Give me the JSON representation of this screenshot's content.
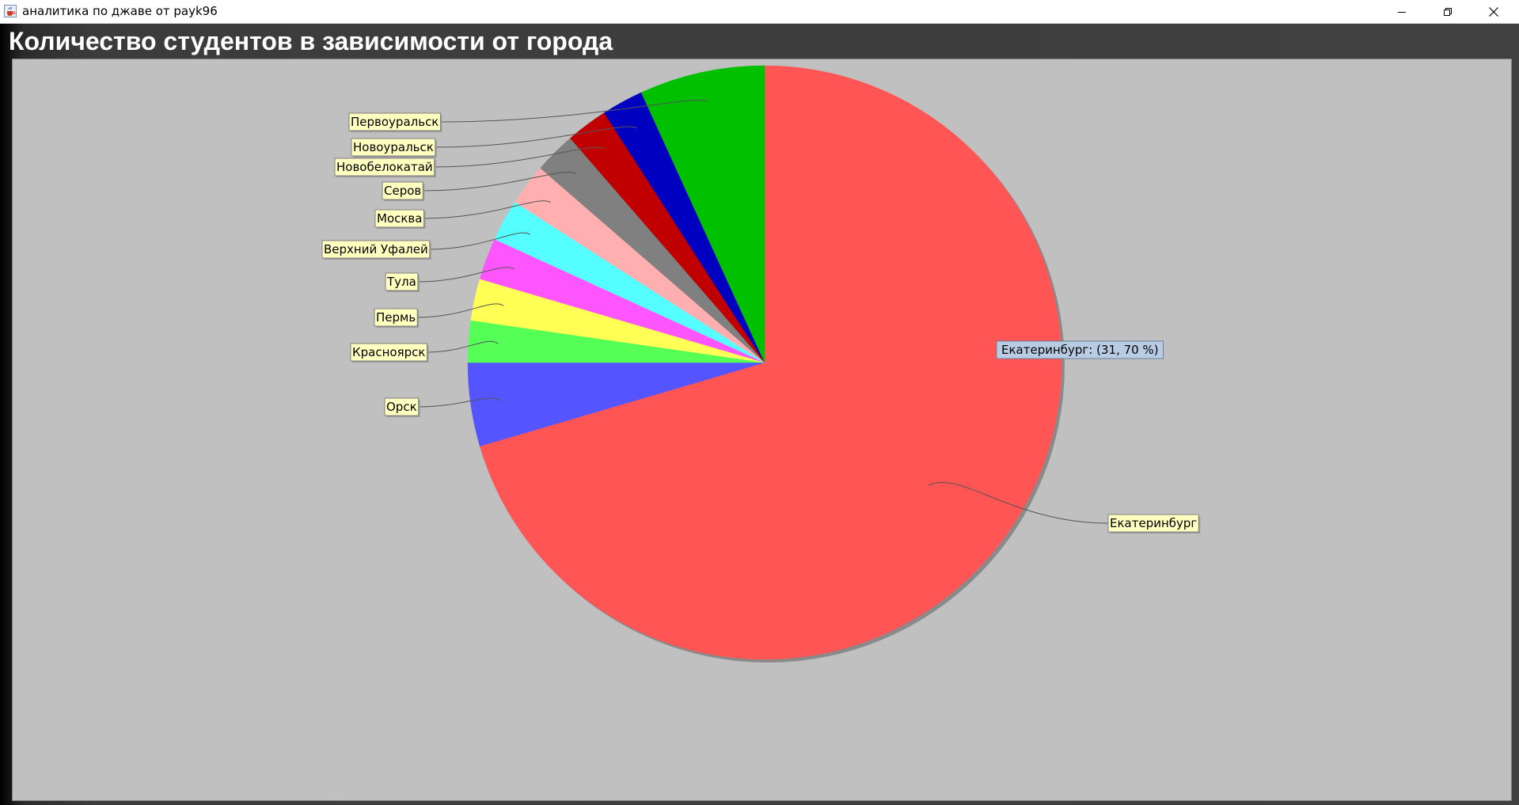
{
  "window": {
    "title": "аналитика по джаве от payk96",
    "icon": "java-cup-icon"
  },
  "colors": {
    "plot_background": "#c0c0c0",
    "label_box": "#ffffc0",
    "tooltip_box": "#b8cce4"
  },
  "tooltip": {
    "text": "Екатеринбург: (31, 70 %)"
  },
  "chart_data": {
    "type": "pie",
    "title": "Количество студентов в зависимости от города",
    "start_angle_deg": 90,
    "direction": "clockwise",
    "legend": "none",
    "slices": [
      {
        "label": "Екатеринбург",
        "value": 31,
        "percent": 70,
        "color": "#ff5555"
      },
      {
        "label": "Орск",
        "value": 2,
        "color": "#5555ff"
      },
      {
        "label": "Красноярск",
        "value": 1,
        "color": "#55ff55"
      },
      {
        "label": "Пермь",
        "value": 1,
        "color": "#ffff55"
      },
      {
        "label": "Тула",
        "value": 1,
        "color": "#ff55ff"
      },
      {
        "label": "Верхний Уфалей",
        "value": 1,
        "color": "#55ffff"
      },
      {
        "label": "Москва",
        "value": 1,
        "color": "#ffafaf"
      },
      {
        "label": "Серов",
        "value": 1,
        "color": "#808080"
      },
      {
        "label": "Новобелокатай",
        "value": 1,
        "color": "#c00000"
      },
      {
        "label": "Новоуральск",
        "value": 1,
        "color": "#0000c0"
      },
      {
        "label": "Первоуральск",
        "value": 3,
        "color": "#00c000"
      }
    ]
  }
}
